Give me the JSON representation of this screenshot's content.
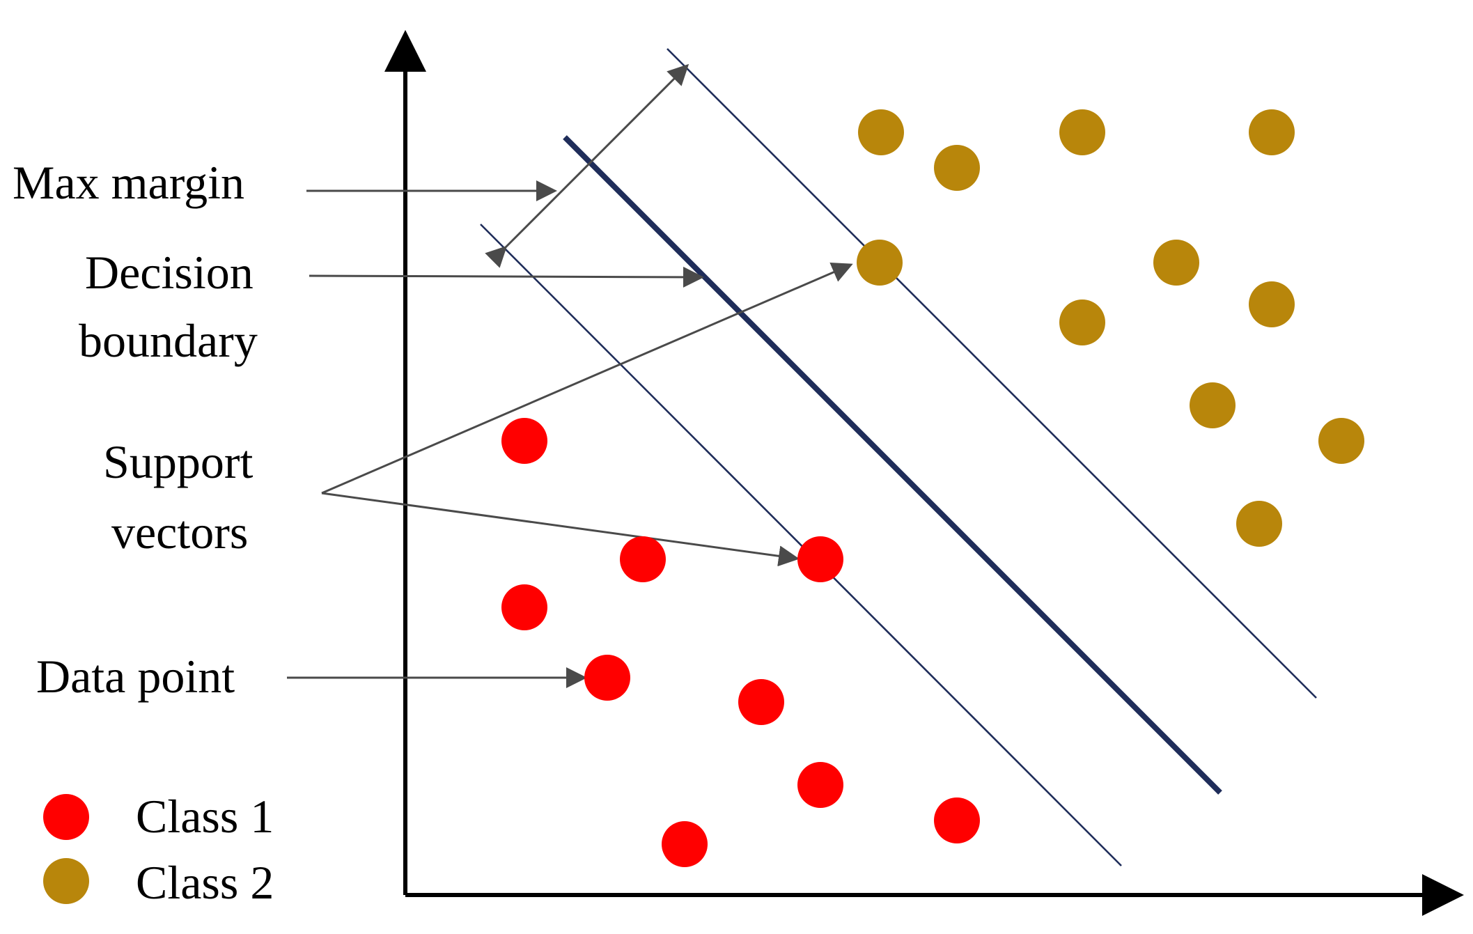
{
  "labels": {
    "max_margin": "Max margin",
    "decision_line1": "Decision",
    "decision_line2": "boundary",
    "support_line1": "Support",
    "support_line2": "vectors",
    "data_point": "Data point"
  },
  "legend": {
    "class1": "Class 1",
    "class2": "Class 2"
  },
  "colors": {
    "class1": "#ff0000",
    "class2": "#b8860b",
    "boundary": "#1f2d5a",
    "pointer": "#4a4a4a"
  }
}
